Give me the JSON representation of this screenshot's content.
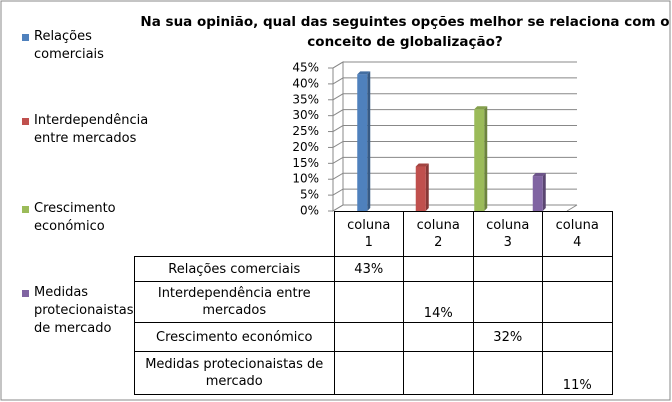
{
  "chart_data": {
    "type": "bar3d",
    "title": "Na sua opinião, qual das seguintes opções melhor se relaciona com o conceito de globalização?",
    "categories": [
      "coluna 1",
      "coluna 2",
      "coluna 3",
      "coluna 4"
    ],
    "series": [
      {
        "name": "Relações comerciais",
        "color": "#4f81bd",
        "values": [
          43,
          null,
          null,
          null
        ],
        "value_labels": [
          "43%",
          null,
          null,
          null
        ]
      },
      {
        "name": "Interdependência entre mercados",
        "color": "#c0504d",
        "values": [
          null,
          14,
          null,
          null
        ],
        "value_labels": [
          null,
          "14%",
          null,
          null
        ]
      },
      {
        "name": "Crescimento económico",
        "color": "#9bbb59",
        "values": [
          null,
          null,
          32,
          null
        ],
        "value_labels": [
          null,
          null,
          "32%",
          null
        ]
      },
      {
        "name": "Medidas protecionaistas de mercado",
        "color": "#8064a2",
        "values": [
          null,
          null,
          null,
          11
        ],
        "value_labels": [
          null,
          null,
          null,
          "11%"
        ]
      }
    ],
    "ylim": [
      0,
      45
    ],
    "yticks": [
      {
        "value": 0,
        "label": "0%"
      },
      {
        "value": 5,
        "label": "5%"
      },
      {
        "value": 10,
        "label": "10%"
      },
      {
        "value": 15,
        "label": "15%"
      },
      {
        "value": 20,
        "label": "20%"
      },
      {
        "value": 25,
        "label": "25%"
      },
      {
        "value": 30,
        "label": "30%"
      },
      {
        "value": 35,
        "label": "35%"
      },
      {
        "value": 40,
        "label": "40%"
      },
      {
        "value": 45,
        "label": "45%"
      }
    ],
    "grid": true,
    "legend": "left"
  }
}
